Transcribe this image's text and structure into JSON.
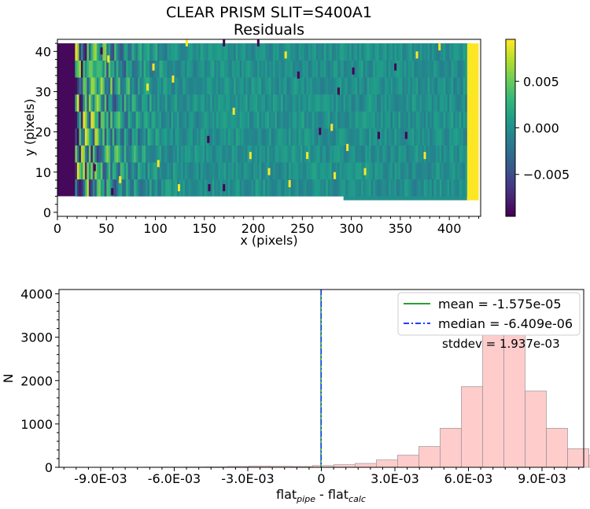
{
  "chart_data": [
    {
      "type": "heatmap",
      "title_line1": "CLEAR   PRISM   SLIT=S400A1",
      "title_line2": "Residuals",
      "xlabel": "x (pixels)",
      "ylabel": "y (pixels)",
      "xlim": [
        0,
        432
      ],
      "ylim": [
        -1,
        43
      ],
      "xticks": [
        0,
        50,
        100,
        150,
        200,
        250,
        300,
        350,
        400
      ],
      "yticks": [
        0,
        10,
        20,
        30,
        40
      ],
      "valid_region": {
        "x_ranges": [
          [
            0,
            292,
            4,
            42
          ],
          [
            292,
            421,
            3,
            42
          ]
        ],
        "left_dark_band": [
          0,
          18
        ],
        "right_bright_band": [
          418,
          432
        ]
      },
      "colorbar": {
        "colormap": "viridis",
        "range": [
          -0.0095,
          0.0095
        ],
        "ticks": [
          -0.005,
          0.0,
          0.005
        ],
        "tick_labels": [
          "−0.005",
          "0.000",
          "0.005"
        ]
      },
      "outlier_pixels": [
        {
          "x": 52,
          "y": 38,
          "v": "high"
        },
        {
          "x": 45,
          "y": 40,
          "v": "low"
        },
        {
          "x": 132,
          "y": 42,
          "v": "high"
        },
        {
          "x": 170,
          "y": 42,
          "v": "low"
        },
        {
          "x": 205,
          "y": 42,
          "v": "low"
        },
        {
          "x": 233,
          "y": 39,
          "v": "high"
        },
        {
          "x": 367,
          "y": 39,
          "v": "high"
        },
        {
          "x": 390,
          "y": 41,
          "v": "high"
        },
        {
          "x": 246,
          "y": 34,
          "v": "low"
        },
        {
          "x": 302,
          "y": 35,
          "v": "low"
        },
        {
          "x": 345,
          "y": 36,
          "v": "low"
        },
        {
          "x": 98,
          "y": 36,
          "v": "high"
        },
        {
          "x": 118,
          "y": 33,
          "v": "high"
        },
        {
          "x": 92,
          "y": 31,
          "v": "high"
        },
        {
          "x": 287,
          "y": 30,
          "v": "low"
        },
        {
          "x": 180,
          "y": 25,
          "v": "high"
        },
        {
          "x": 268,
          "y": 20,
          "v": "low"
        },
        {
          "x": 280,
          "y": 21,
          "v": "high"
        },
        {
          "x": 328,
          "y": 19,
          "v": "low"
        },
        {
          "x": 356,
          "y": 19,
          "v": "low"
        },
        {
          "x": 154,
          "y": 18,
          "v": "low"
        },
        {
          "x": 197,
          "y": 14,
          "v": "high"
        },
        {
          "x": 255,
          "y": 14,
          "v": "high"
        },
        {
          "x": 296,
          "y": 16,
          "v": "high"
        },
        {
          "x": 375,
          "y": 14,
          "v": "high"
        },
        {
          "x": 103,
          "y": 12,
          "v": "high"
        },
        {
          "x": 216,
          "y": 10,
          "v": "high"
        },
        {
          "x": 283,
          "y": 9,
          "v": "high"
        },
        {
          "x": 314,
          "y": 10,
          "v": "high"
        },
        {
          "x": 124,
          "y": 6,
          "v": "high"
        },
        {
          "x": 155,
          "y": 6,
          "v": "low"
        },
        {
          "x": 170,
          "y": 6,
          "v": "low"
        },
        {
          "x": 237,
          "y": 7,
          "v": "high"
        },
        {
          "x": 64,
          "y": 8,
          "v": "high"
        },
        {
          "x": 56,
          "y": 5,
          "v": "low"
        },
        {
          "x": 38,
          "y": 11,
          "v": "low"
        }
      ]
    },
    {
      "type": "bar",
      "subtype": "histogram",
      "xlabel_main": "flat",
      "xlabel_sub1": "pipe",
      "xlabel_mid": " - flat",
      "xlabel_sub2": "calc",
      "ylabel": "N",
      "xlim": [
        -0.0107,
        0.0107
      ],
      "ylim": [
        0,
        4100
      ],
      "xticks": [
        -0.009,
        -0.006,
        -0.003,
        0,
        0.003,
        0.006,
        0.009
      ],
      "xtick_labels": [
        "-9.0E-03",
        "-6.0E-03",
        "-3.0E-03",
        "0",
        "3.0E-03",
        "6.0E-03",
        "9.0E-03"
      ],
      "yticks": [
        0,
        1000,
        2000,
        3000,
        4000
      ],
      "bin_width": 0.000867,
      "bin_start": -0.00903,
      "counts": [
        2,
        3,
        5,
        6,
        8,
        10,
        20,
        30,
        25,
        20,
        40,
        60,
        90,
        170,
        280,
        480,
        900,
        1860,
        3760,
        3960,
        1760,
        900,
        430,
        280,
        150,
        90,
        70,
        50,
        40,
        25,
        20,
        12,
        8,
        5,
        3,
        2
      ],
      "bar_color": "#ffcccc",
      "bar_edge": "#8a8a8a",
      "mean": -1.575e-05,
      "median": -6.409e-06,
      "legend": [
        {
          "label": "mean = -1.575e-05",
          "color": "#2ca02c",
          "style": "solid"
        },
        {
          "label": "median = -6.409e-06",
          "color": "#1f3fff",
          "style": "dashdot"
        }
      ],
      "stddev_text": "stddev = 1.937e-03",
      "legend_position": "upper-right"
    }
  ]
}
